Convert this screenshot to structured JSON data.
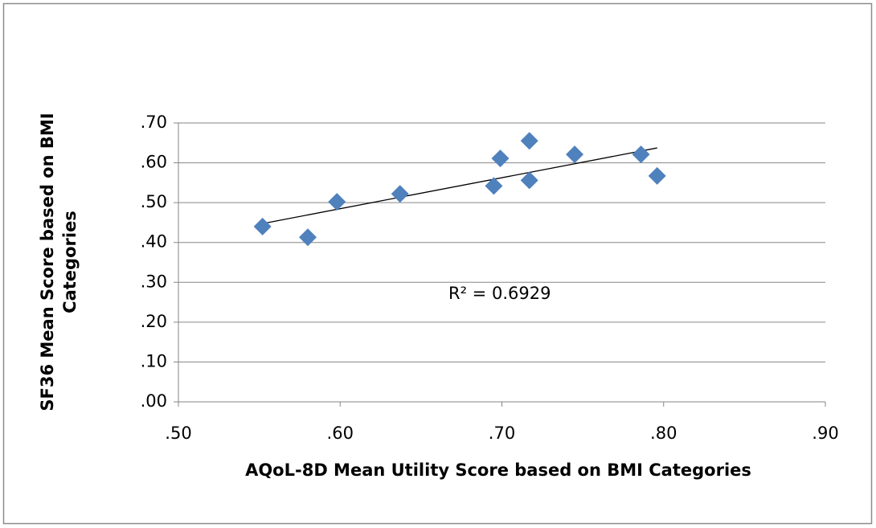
{
  "chart_data": {
    "type": "scatter",
    "x_label": "AQoL-8D Mean Utility Score based on BMI Categories",
    "y_label": [
      "SF36  Mean Score based on BMI",
      "Categories"
    ],
    "annotation": "R² = 0.6929",
    "trendline": true,
    "trendline_color": "#000000",
    "grid": true,
    "series": [
      {
        "color": "#4f81bd",
        "x": [
          0.552,
          0.58,
          0.598,
          0.637,
          0.695,
          0.699,
          0.717,
          0.717,
          0.745,
          0.786,
          0.796
        ],
        "values": [
          0.44,
          0.413,
          0.502,
          0.522,
          0.542,
          0.611,
          0.655,
          0.556,
          0.621,
          0.621,
          0.567
        ]
      }
    ],
    "xlim": [
      0.5,
      0.9
    ],
    "xticks": [
      {
        "value": 0.5,
        "label": ".50"
      },
      {
        "value": 0.6,
        "label": ".60"
      },
      {
        "value": 0.7,
        "label": ".70"
      },
      {
        "value": 0.8,
        "label": ".80"
      },
      {
        "value": 0.9,
        "label": ".90"
      }
    ],
    "ylim": [
      0,
      0.7
    ],
    "yticks": [
      {
        "value": 0,
        "label": ".00"
      },
      {
        "value": 0.1,
        "label": ".10"
      },
      {
        "value": 0.2,
        "label": ".20"
      },
      {
        "value": 0.3,
        "label": ".30"
      },
      {
        "value": 0.4,
        "label": ".40"
      },
      {
        "value": 0.5,
        "label": ".50"
      },
      {
        "value": 0.6,
        "label": ".60"
      },
      {
        "value": 0.7,
        "label": ".70"
      }
    ]
  }
}
